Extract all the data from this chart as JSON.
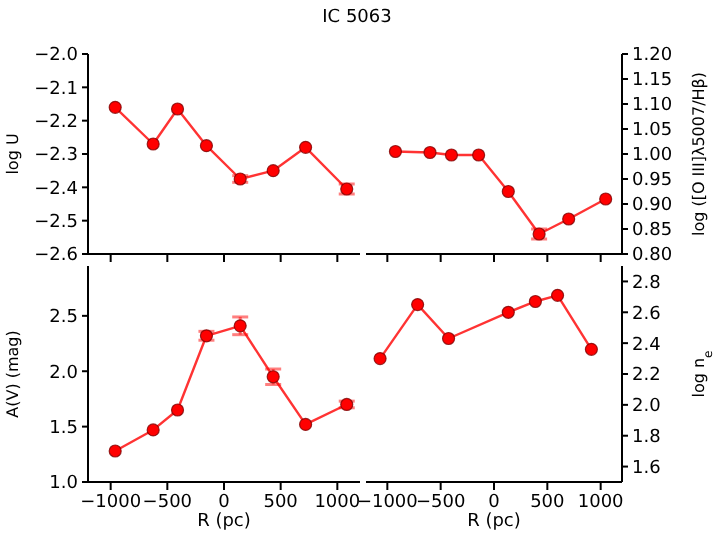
{
  "chart_data": [
    {
      "type": "line",
      "title": "IC 5063",
      "ylabel": "log U",
      "xlim": [
        -1200,
        1200
      ],
      "xticks": [
        {
          "value": -1000,
          "label": null
        },
        {
          "value": -500,
          "label": null
        },
        {
          "value": 0,
          "label": null
        },
        {
          "value": 500,
          "label": null
        },
        {
          "value": 1000,
          "label": null
        }
      ],
      "ylim": [
        -2.6,
        -2.0
      ],
      "yticks": [
        {
          "value": -2.6,
          "label": "−2.6"
        },
        {
          "value": -2.5,
          "label": "−2.5"
        },
        {
          "value": -2.4,
          "label": "−2.4"
        },
        {
          "value": -2.3,
          "label": "−2.3"
        },
        {
          "value": -2.2,
          "label": "−2.2"
        },
        {
          "value": -2.1,
          "label": "−2.1"
        },
        {
          "value": -2.0,
          "label": "−2.0"
        }
      ],
      "tick_labels": "y",
      "marker": "circle",
      "x": [
        -960,
        -625,
        -410,
        -155,
        143,
        434,
        720,
        1083
      ],
      "series": [
        {
          "color": "#ff0000",
          "values": [
            -2.16,
            -2.27,
            -2.165,
            -2.275,
            -2.375,
            -2.35,
            -2.28,
            -2.405
          ],
          "errors": [
            null,
            null,
            null,
            null,
            0.01,
            null,
            null,
            0.015
          ]
        }
      ]
    },
    {
      "type": "line",
      "y2label": "log ([O III]λ5007/Hβ)",
      "xlim": [
        -1200,
        1200
      ],
      "xticks": [
        {
          "value": -1000,
          "label": null
        },
        {
          "value": -500,
          "label": null
        },
        {
          "value": 0,
          "label": null
        },
        {
          "value": 500,
          "label": null
        },
        {
          "value": 1000,
          "label": null
        }
      ],
      "y2lim": [
        0.8,
        1.2
      ],
      "y2ticks": [
        {
          "value": 0.8,
          "label": "0.80"
        },
        {
          "value": 0.85,
          "label": "0.85"
        },
        {
          "value": 0.9,
          "label": "0.90"
        },
        {
          "value": 0.95,
          "label": "0.95"
        },
        {
          "value": 1.0,
          "label": "1.00"
        },
        {
          "value": 1.05,
          "label": "1.05"
        },
        {
          "value": 1.1,
          "label": "1.10"
        },
        {
          "value": 1.15,
          "label": "1.15"
        },
        {
          "value": 1.2,
          "label": "1.20"
        }
      ],
      "tick_labels": "y",
      "marker": "circle",
      "x": [
        -924,
        -600,
        -399,
        -144,
        134,
        423,
        700,
        1047
      ],
      "series": [
        {
          "color": "#ff0000",
          "axis": "y2",
          "values": [
            1.005,
            1.003,
            0.998,
            0.998,
            0.925,
            0.84,
            0.87,
            0.91
          ],
          "errors": [
            null,
            null,
            null,
            null,
            null,
            0.01,
            null,
            null
          ]
        }
      ]
    },
    {
      "type": "line",
      "xlabel": "R (pc)",
      "ylabel": "A(V) (mag)",
      "xlim": [
        -1200,
        1200
      ],
      "xticks": [
        {
          "value": -1000,
          "label": "−1000"
        },
        {
          "value": -500,
          "label": "−500"
        },
        0,
        500,
        1000
      ],
      "ylim": [
        1.0,
        2.95
      ],
      "yticks": [
        {
          "value": 1.0,
          "label": "1.0"
        },
        1.5,
        {
          "value": 2.0,
          "label": "2.0"
        },
        2.5
      ],
      "marker": "circle",
      "x": [
        -960,
        -625,
        -410,
        -155,
        143,
        434,
        720,
        1083
      ],
      "series": [
        {
          "color": "#ff0000",
          "values": [
            1.28,
            1.47,
            1.65,
            2.32,
            2.41,
            1.95,
            1.52,
            1.7
          ],
          "errors": [
            null,
            null,
            null,
            0.04,
            0.08,
            0.07,
            null,
            0.03
          ]
        }
      ]
    },
    {
      "type": "line",
      "xlabel": "R (pc)",
      "y2label": "log n$_{e}$",
      "xlim": [
        -1200,
        1200
      ],
      "xticks": [
        {
          "value": -1000,
          "label": "−1000"
        },
        {
          "value": -500,
          "label": "−500"
        },
        0,
        500,
        1000
      ],
      "y2lim": [
        1.5,
        2.9
      ],
      "y2ticks": [
        1.6,
        1.8,
        {
          "value": 2.0,
          "label": "2.0"
        },
        2.2,
        2.4,
        2.6,
        2.8
      ],
      "marker": "circle",
      "x": [
        -1068,
        -716,
        -426,
        134,
        388,
        596,
        913
      ],
      "series": [
        {
          "color": "#ff0000",
          "axis": "y2",
          "values": [
            2.3,
            2.65,
            2.43,
            2.6,
            2.67,
            2.71,
            2.36
          ]
        }
      ]
    }
  ]
}
